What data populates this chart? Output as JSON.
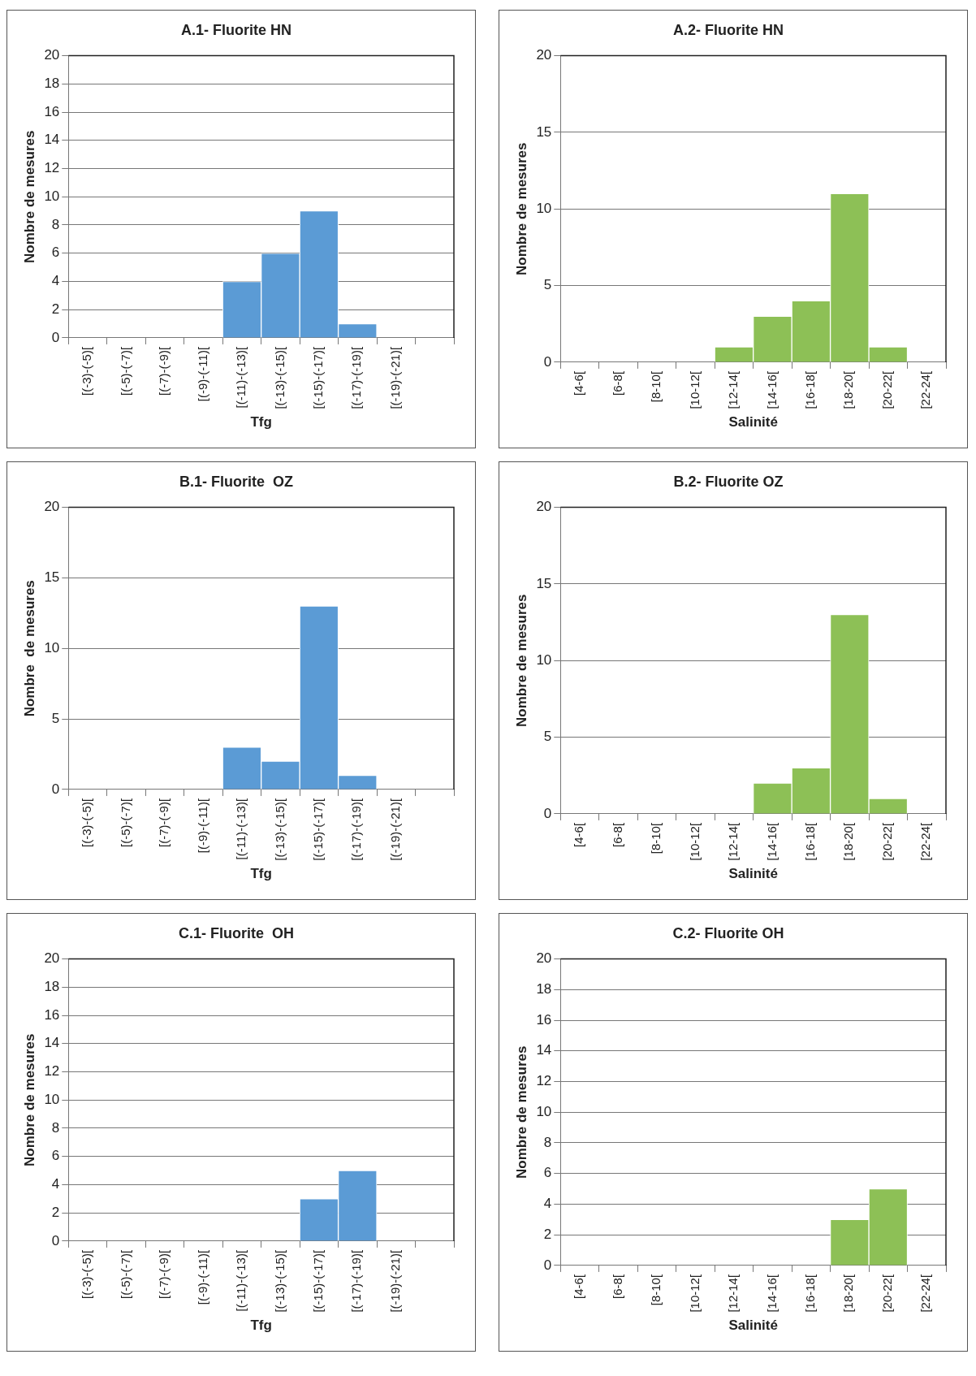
{
  "chart_data": [
    {
      "type": "bar",
      "title": "A.1- Fluorite HN",
      "xlabel": "Tfg",
      "ylabel": "Nombre de mesures",
      "categories": [
        "[(-3)-(-5)[",
        "[(-5)-(-7)[",
        "[(-7)-(-9)[",
        "[(-9)-(-11)[",
        "[(-11)-(-13)[",
        "[(-13)-(-15)[",
        "[(-15)-(-17)[",
        "[(-17)-(-19)[",
        "[(-19)-(-21)[",
        null
      ],
      "values": [
        0,
        0,
        0,
        0,
        4,
        6,
        9,
        1,
        0,
        0
      ],
      "color": "#5b9bd5",
      "ylim": [
        0,
        20
      ],
      "yticks": [
        0,
        2,
        4,
        6,
        8,
        10,
        12,
        14,
        16,
        18,
        20
      ],
      "grid": "y"
    },
    {
      "type": "bar",
      "title": "A.2- Fluorite HN",
      "xlabel": "Salinité",
      "ylabel": "Nombre de mesures",
      "categories": [
        "[4-6[",
        "[6-8[",
        "[8-10[",
        "[10-12[",
        "[12-14[",
        "[14-16[",
        "[16-18[",
        "[18-20[",
        "[20-22[",
        "[22-24["
      ],
      "values": [
        0,
        0,
        0,
        0,
        1,
        3,
        4,
        11,
        1,
        0
      ],
      "color": "#8dc056",
      "ylim": [
        0,
        20
      ],
      "yticks": [
        0,
        5,
        10,
        15,
        20
      ],
      "grid": "y"
    },
    {
      "type": "bar",
      "title": "B.1- Fluorite  OZ",
      "xlabel": "Tfg",
      "ylabel": "Nombre  de mesures",
      "categories": [
        "[(-3)-(-5)[",
        "[(-5)-(-7)[",
        "[(-7)-(-9)[",
        "[(-9)-(-11)[",
        "[(-11)-(-13)[",
        "[(-13)-(-15)[",
        "[(-15)-(-17)[",
        "[(-17)-(-19)[",
        "[(-19)-(-21)[",
        null
      ],
      "values": [
        0,
        0,
        0,
        0,
        3,
        2,
        13,
        1,
        0,
        0
      ],
      "color": "#5b9bd5",
      "ylim": [
        0,
        20
      ],
      "yticks": [
        0,
        5,
        10,
        15,
        20
      ],
      "grid": "y"
    },
    {
      "type": "bar",
      "title": "B.2- Fluorite OZ",
      "xlabel": "Salinité",
      "ylabel": "Nombre de mesures",
      "categories": [
        "[4-6[",
        "[6-8[",
        "[8-10[",
        "[10-12[",
        "[12-14[",
        "[14-16[",
        "[16-18[",
        "[18-20[",
        "[20-22[",
        "[22-24["
      ],
      "values": [
        0,
        0,
        0,
        0,
        0,
        2,
        3,
        13,
        1,
        0
      ],
      "color": "#8dc056",
      "ylim": [
        0,
        20
      ],
      "yticks": [
        0,
        5,
        10,
        15,
        20
      ],
      "grid": "y"
    },
    {
      "type": "bar",
      "title": "C.1- Fluorite  OH",
      "xlabel": "Tfg",
      "ylabel": "Nombre de mesures",
      "categories": [
        "[(-3)-(-5)[",
        "[(-5)-(-7)[",
        "[(-7)-(-9)[",
        "[(-9)-(-11)[",
        "[(-11)-(-13)[",
        "[(-13)-(-15)[",
        "[(-15)-(-17)[",
        "[(-17)-(-19)[",
        "[(-19)-(-21)[",
        null
      ],
      "values": [
        0,
        0,
        0,
        0,
        0,
        0,
        3,
        5,
        0,
        0
      ],
      "color": "#5b9bd5",
      "ylim": [
        0,
        20
      ],
      "yticks": [
        0,
        2,
        4,
        6,
        8,
        10,
        12,
        14,
        16,
        18,
        20
      ],
      "grid": "y"
    },
    {
      "type": "bar",
      "title": "C.2- Fluorite OH",
      "xlabel": "Salinité",
      "ylabel": "Nombre de mesures",
      "categories": [
        "[4-6[",
        "[6-8[",
        "[8-10[",
        "[10-12[",
        "[12-14[",
        "[14-16[",
        "[16-18[",
        "[18-20[",
        "[20-22[",
        "[22-24["
      ],
      "values": [
        0,
        0,
        0,
        0,
        0,
        0,
        0,
        3,
        5,
        0
      ],
      "color": "#8dc056",
      "ylim": [
        0,
        20
      ],
      "yticks": [
        0,
        2,
        4,
        6,
        8,
        10,
        12,
        14,
        16,
        18,
        20
      ],
      "grid": "y"
    }
  ]
}
